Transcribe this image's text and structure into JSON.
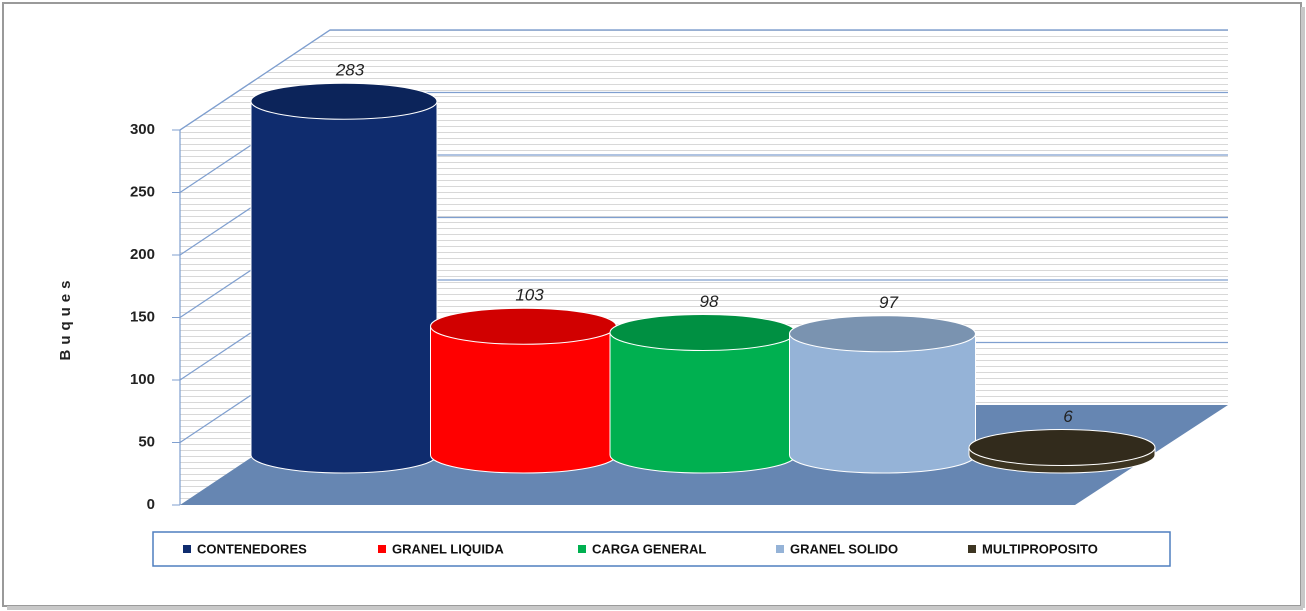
{
  "chart_data": {
    "type": "bar3d",
    "y_label": "Buques",
    "series": [
      {
        "name": "CONTENEDORES",
        "color": "#0f2c6e",
        "values": [
          283
        ]
      },
      {
        "name": "GRANEL LIQUIDA",
        "color": "#ff0000",
        "values": [
          103
        ]
      },
      {
        "name": "CARGA GENERAL",
        "color": "#00b050",
        "values": [
          98
        ]
      },
      {
        "name": "GRANEL SOLIDO",
        "color": "#95b3d7",
        "values": [
          97
        ]
      },
      {
        "name": "MULTIPROPOSITO",
        "color": "#3d3522",
        "values": [
          6
        ]
      }
    ],
    "ylim": [
      0,
      300
    ],
    "yticks": [
      0,
      50,
      100,
      150,
      200,
      250,
      300
    ],
    "grid": true,
    "legend": "bottom"
  }
}
